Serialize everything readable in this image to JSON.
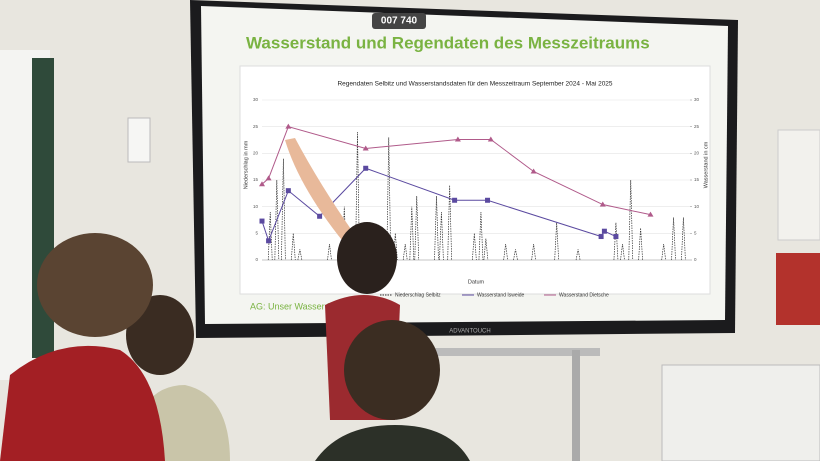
{
  "screen": {
    "badge": "007 740",
    "slide_title": "Wasserstand und Regendaten des Messzeitraums",
    "footer": "AG: Unser Wasser im",
    "brand": "ADVANTOUCH"
  },
  "chart_data": {
    "type": "line",
    "title": "Regendaten Selbitz und Wasserstandsdaten für den Messzeitraum September 2024 - Mai 2025",
    "y_label": "Niederschlag in mm",
    "y2_label": "Wasserstand in cm",
    "x_label": "Datum",
    "xlim": [
      0,
      260
    ],
    "ylim": [
      0,
      30
    ],
    "yticks": [
      0,
      5,
      10,
      15,
      20,
      25,
      30
    ],
    "y2lim": [
      0,
      30
    ],
    "y2ticks": [
      0,
      5,
      10,
      15,
      20,
      25,
      30
    ],
    "series": [
      {
        "name": "Niederschlag Selbitz",
        "color": "#333333",
        "x": [
          5,
          9,
          13,
          19,
          23,
          41,
          50,
          58,
          66,
          77,
          81,
          87,
          91,
          94,
          106,
          109,
          114,
          129,
          133,
          136,
          148,
          154,
          165,
          179,
          192,
          215,
          219,
          224,
          230,
          244,
          250,
          256
        ],
        "values": [
          9,
          15,
          19,
          5,
          2,
          3,
          10,
          24,
          5,
          23,
          5,
          3,
          10,
          12,
          12,
          9,
          14,
          5,
          9,
          4,
          3,
          2,
          3,
          7,
          2,
          7,
          3,
          15,
          6,
          3,
          8,
          8
        ]
      },
      {
        "name": "Wasserstand Isweide",
        "color": "#5b4aa0",
        "axis": "y2",
        "x": [
          0,
          4,
          16,
          35,
          63,
          117,
          137,
          206,
          208,
          215
        ],
        "values": [
          7.3,
          3.6,
          13,
          8.2,
          17.2,
          11.2,
          11.2,
          4.4,
          5.4,
          4.4
        ]
      },
      {
        "name": "Wasserstand Dietsche",
        "color": "#b05a8a",
        "axis": "y2",
        "x": [
          0,
          4,
          16,
          63,
          119,
          139,
          165,
          207,
          236
        ],
        "values": [
          14.2,
          15.3,
          25,
          20.9,
          22.6,
          22.6,
          16.6,
          10.4,
          8.5
        ]
      }
    ]
  }
}
